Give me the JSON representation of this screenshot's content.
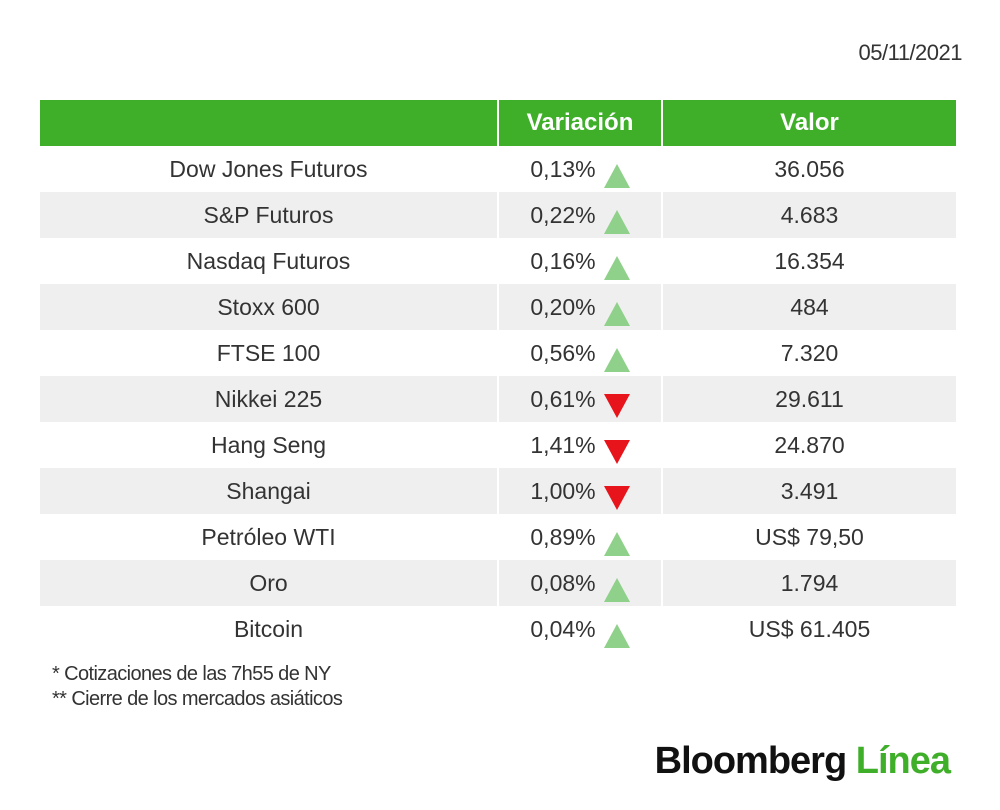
{
  "date": "05/11/2021",
  "table": {
    "headers": {
      "name": "",
      "variation": "Variación",
      "value": "Valor"
    },
    "rows": [
      {
        "name": "Dow Jones Futuros",
        "variation": "0,13%",
        "direction": "up",
        "value": "36.056"
      },
      {
        "name": "S&P Futuros",
        "variation": "0,22%",
        "direction": "up",
        "value": "4.683"
      },
      {
        "name": "Nasdaq Futuros",
        "variation": "0,16%",
        "direction": "up",
        "value": "16.354"
      },
      {
        "name": "Stoxx 600",
        "variation": "0,20%",
        "direction": "up",
        "value": "484"
      },
      {
        "name": "FTSE 100",
        "variation": "0,56%",
        "direction": "up",
        "value": "7.320"
      },
      {
        "name": "Nikkei 225",
        "variation": "0,61%",
        "direction": "down",
        "value": "29.611"
      },
      {
        "name": "Hang Seng",
        "variation": "1,41%",
        "direction": "down",
        "value": "24.870"
      },
      {
        "name": "Shangai",
        "variation": "1,00%",
        "direction": "down",
        "value": "3.491"
      },
      {
        "name": "Petróleo WTI",
        "variation": "0,89%",
        "direction": "up",
        "value": "US$ 79,50"
      },
      {
        "name": "Oro",
        "variation": "0,08%",
        "direction": "up",
        "value": "1.794"
      },
      {
        "name": "Bitcoin",
        "variation": "0,04%",
        "direction": "up",
        "value": "US$ 61.405"
      }
    ]
  },
  "notes": {
    "line1": "* Cotizaciones de las 7h55 de NY",
    "line2": "** Cierre de los mercados asiáticos"
  },
  "logo": {
    "brand": "Bloomberg",
    "sub": "Línea"
  },
  "colors": {
    "header_green": "#3faf2a",
    "up_arrow": "#8fd08a",
    "down_arrow": "#e8141c",
    "stripe": "#efefef"
  },
  "icons": {
    "up": "triangle-up-icon",
    "down": "triangle-down-icon"
  }
}
